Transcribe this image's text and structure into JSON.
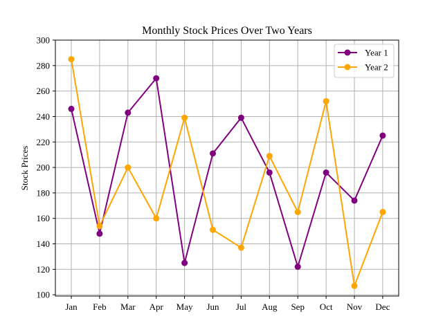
{
  "chart_data": {
    "type": "line",
    "title": "Monthly Stock Prices Over Two Years",
    "xlabel": "",
    "ylabel": "Stock Prices",
    "categories": [
      "Jan",
      "Feb",
      "Mar",
      "Apr",
      "May",
      "Jun",
      "Jul",
      "Aug",
      "Sep",
      "Oct",
      "Nov",
      "Dec"
    ],
    "ylim": [
      99,
      300
    ],
    "yticks": [
      100,
      120,
      140,
      160,
      180,
      200,
      220,
      240,
      260,
      280,
      300
    ],
    "grid": true,
    "legend_position": "upper right",
    "series": [
      {
        "name": "Year 1",
        "color": "#800080",
        "marker": "circle",
        "values": [
          246,
          148,
          243,
          270,
          125,
          211,
          239,
          196,
          122,
          196,
          174,
          225
        ]
      },
      {
        "name": "Year 2",
        "color": "#FFA500",
        "marker": "circle",
        "values": [
          285,
          154,
          200,
          160,
          239,
          151,
          137,
          209,
          165,
          252,
          107,
          165
        ]
      }
    ]
  }
}
